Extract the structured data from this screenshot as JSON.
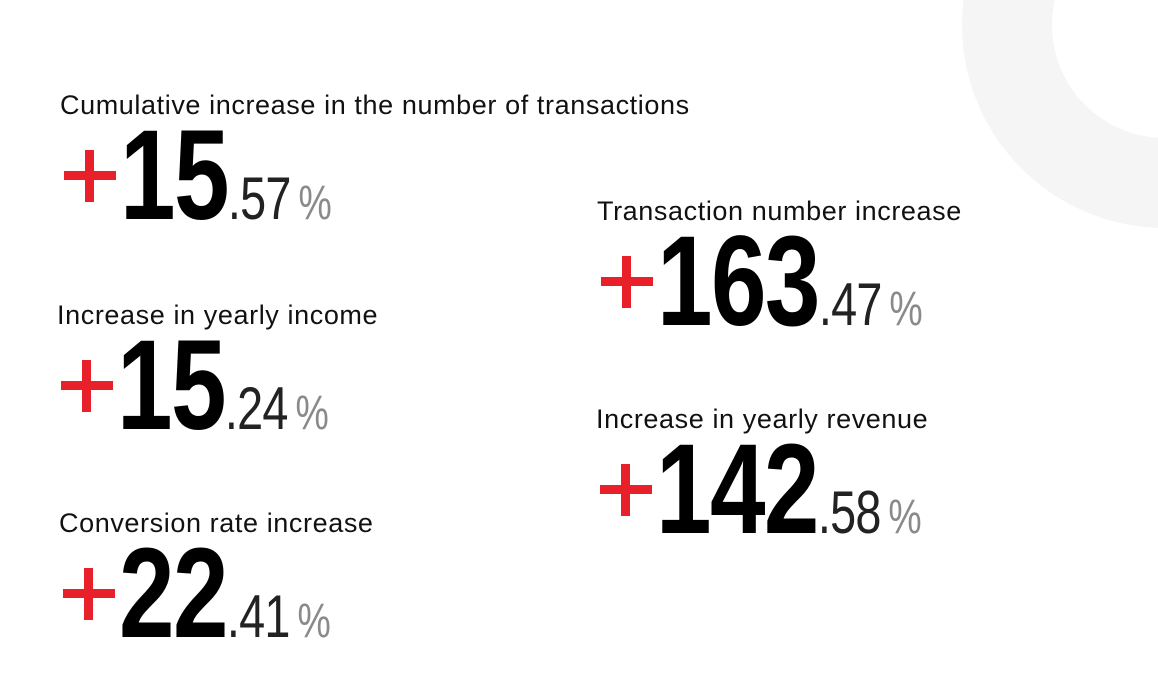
{
  "stats_left": [
    {
      "label": "Cumulative increase in the number of transactions",
      "sign": "+",
      "integer": "15",
      "decimal": ".57",
      "unit": "%"
    },
    {
      "label": "Increase in yearly income",
      "sign": "+",
      "integer": "15",
      "decimal": ".24",
      "unit": "%"
    },
    {
      "label": "Conversion rate increase",
      "sign": "+",
      "integer": "22",
      "decimal": ".41",
      "unit": "%"
    }
  ],
  "stats_right": [
    {
      "label": "Transaction number increase",
      "sign": "+",
      "integer": "163",
      "decimal": ".47",
      "unit": "%"
    },
    {
      "label": "Increase in yearly revenue",
      "sign": "+",
      "integer": "142",
      "decimal": ".58",
      "unit": "%"
    }
  ],
  "colors": {
    "accent": "#e8202a",
    "ring": "#f5f5f5",
    "unit": "#8a8a8a"
  }
}
